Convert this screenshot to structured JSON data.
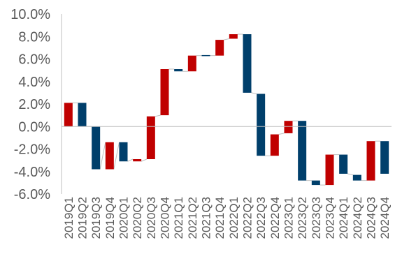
{
  "chart_data": {
    "type": "bar",
    "subtype": "waterfall",
    "title": "",
    "xlabel": "",
    "ylabel": "",
    "ylim": [
      -6.0,
      10.0
    ],
    "y_ticks": [
      -6.0,
      -4.0,
      -2.0,
      0.0,
      2.0,
      4.0,
      6.0,
      8.0,
      10.0
    ],
    "y_tick_labels": [
      "-6.0%",
      "-4.0%",
      "-2.0%",
      "0.0%",
      "2.0%",
      "4.0%",
      "6.0%",
      "8.0%",
      "10.0%"
    ],
    "grid": false,
    "legend": "none",
    "colors": {
      "red": "#c00000",
      "blue": "#003f6b",
      "axis": "#bfbfbf",
      "tick_text": "#595959"
    },
    "categories": [
      "2019Q1",
      "2019Q2",
      "2019Q3",
      "2019Q4",
      "2020Q1",
      "2020Q2",
      "2020Q3",
      "2020Q4",
      "2021Q1",
      "2021Q2",
      "2021Q3",
      "2021Q4",
      "2022Q1",
      "2022Q2",
      "2022Q3",
      "2022Q4",
      "2023Q1",
      "2023Q2",
      "2023Q3",
      "2023Q4",
      "2024Q1",
      "2024Q2",
      "2024Q3",
      "2024Q4"
    ],
    "bars": [
      {
        "start": 0.0,
        "end": 2.1,
        "color": "red"
      },
      {
        "start": 2.1,
        "end": 0.0,
        "color": "blue"
      },
      {
        "start": 0.0,
        "end": -3.8,
        "color": "blue"
      },
      {
        "start": -1.4,
        "end": -3.8,
        "color": "red"
      },
      {
        "start": -1.4,
        "end": -3.1,
        "color": "blue"
      },
      {
        "start": -2.9,
        "end": -3.1,
        "color": "red"
      },
      {
        "start": -2.9,
        "end": 0.9,
        "color": "red"
      },
      {
        "start": 1.0,
        "end": 5.1,
        "color": "red"
      },
      {
        "start": 5.1,
        "end": 4.9,
        "color": "blue"
      },
      {
        "start": 4.9,
        "end": 6.3,
        "color": "red"
      },
      {
        "start": 6.3,
        "end": 6.3,
        "color": "blue"
      },
      {
        "start": 6.3,
        "end": 7.7,
        "color": "red"
      },
      {
        "start": 7.8,
        "end": 8.2,
        "color": "red"
      },
      {
        "start": 8.2,
        "end": 3.0,
        "color": "blue"
      },
      {
        "start": 2.9,
        "end": -2.6,
        "color": "blue"
      },
      {
        "start": -2.6,
        "end": -0.7,
        "color": "red"
      },
      {
        "start": -0.6,
        "end": 0.5,
        "color": "red"
      },
      {
        "start": 0.5,
        "end": -4.8,
        "color": "blue"
      },
      {
        "start": -4.8,
        "end": -5.2,
        "color": "blue"
      },
      {
        "start": -5.2,
        "end": -2.5,
        "color": "red"
      },
      {
        "start": -2.5,
        "end": -4.2,
        "color": "blue"
      },
      {
        "start": -4.3,
        "end": -4.8,
        "color": "blue"
      },
      {
        "start": -4.8,
        "end": -1.3,
        "color": "red"
      },
      {
        "start": -1.3,
        "end": -4.2,
        "color": "blue"
      }
    ]
  }
}
